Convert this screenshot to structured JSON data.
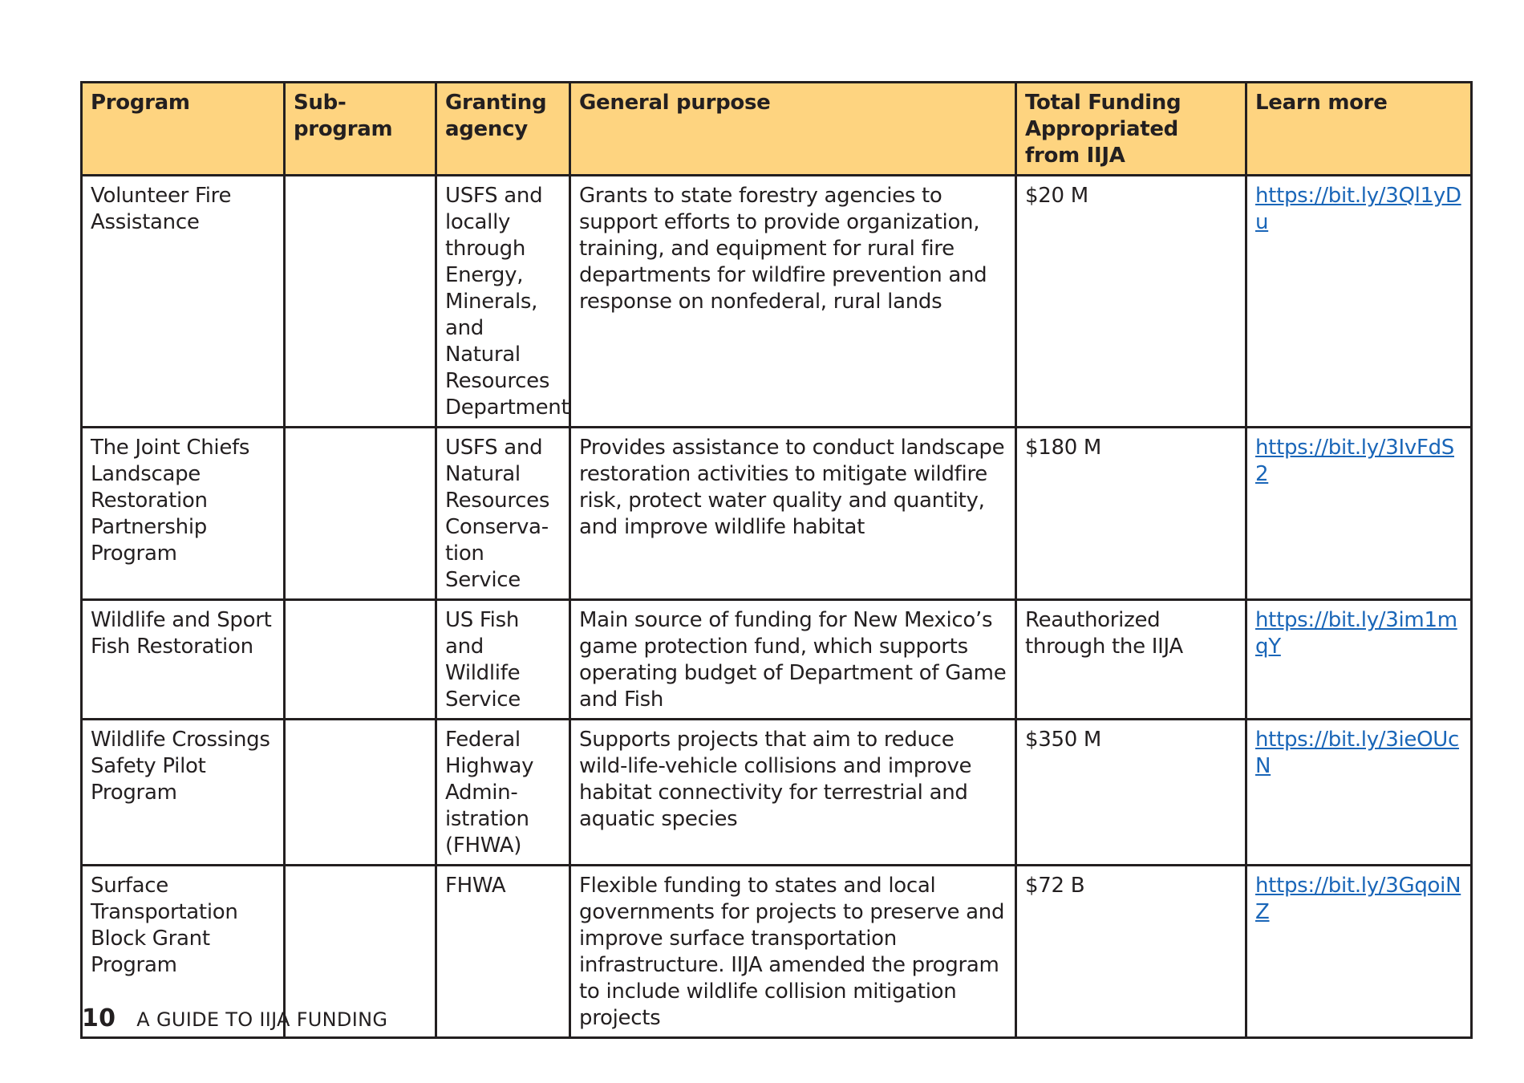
{
  "table": {
    "headers": [
      "Program",
      "Sub-program",
      "Granting agency",
      "General purpose",
      "Total Funding Appropriated from IIJA",
      "Learn more"
    ],
    "rows": [
      {
        "program": "Volunteer Fire Assistance",
        "subprogram": "",
        "agency": "USFS and locally through Energy, Minerals, and Natural Resources Department",
        "purpose": "Grants to state forestry agencies to support efforts to provide organization, training, and equipment for rural fire departments for wildfire prevention and response on nonfederal, rural lands",
        "funding": "$20 M",
        "link": "https://bit.ly/3Ql1yDu"
      },
      {
        "program": "The Joint Chiefs Landscape Restoration Partnership Program",
        "subprogram": "",
        "agency": "USFS and Natural Resources Conserva-tion Service",
        "purpose": "Provides assistance to conduct landscape restoration activities to mitigate wildfire risk, protect water quality and quantity, and improve wildlife habitat",
        "funding": "$180 M",
        "link": "https://bit.ly/3IvFdS2"
      },
      {
        "program": "Wildlife and Sport Fish Restoration",
        "subprogram": "",
        "agency": "US Fish and Wildlife Service",
        "purpose": "Main source of funding for New Mexico’s game protection fund, which supports operating budget of Department of Game and Fish",
        "funding": "Reauthorized through the IIJA",
        "link": "https://bit.ly/3im1mqY"
      },
      {
        "program": "Wildlife Crossings Safety Pilot Program",
        "subprogram": "",
        "agency": "Federal Highway Admin-istration (FHWA)",
        "purpose": "Supports projects that aim to reduce wild-life-vehicle collisions and improve habitat connectivity for terrestrial and aquatic species",
        "funding": "$350 M",
        "link": "https://bit.ly/3ieOUcN"
      },
      {
        "program": "Surface Transportation Block Grant Program",
        "subprogram": "",
        "agency": "FHWA",
        "purpose": "Flexible funding to states and local governments for projects to preserve and improve surface transportation infrastructure. IIJA amended the program to include wildlife collision mitigation projects",
        "funding": "$72 B",
        "link": "https://bit.ly/3GqoiNZ"
      }
    ]
  },
  "footer": {
    "page_number": "10",
    "title": "A GUIDE TO IIJA FUNDING"
  }
}
